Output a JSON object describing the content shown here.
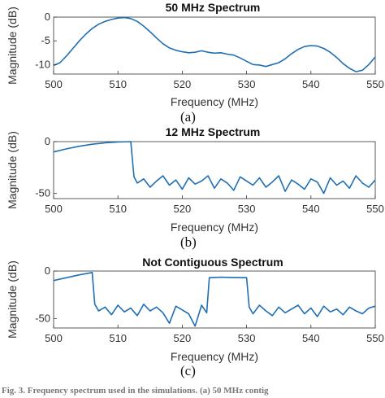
{
  "chart_data": [
    {
      "type": "line",
      "title": "50 MHz Spectrum",
      "xlabel": "Frequency (MHz)",
      "ylabel": "Magnitude (dB)",
      "caption": "(a)",
      "xlim": [
        500,
        550
      ],
      "ylim": [
        -12,
        0
      ],
      "xticks": [
        "500",
        "510",
        "520",
        "530",
        "540",
        "550"
      ],
      "yticks": [
        "0",
        "-5",
        "-10"
      ],
      "ytick_values": [
        0,
        -5,
        -10
      ],
      "series": [
        {
          "color": "#1f6fb5",
          "x": [
            500,
            501,
            502,
            503,
            504,
            505,
            506,
            507,
            508,
            509,
            510,
            511,
            512,
            513,
            514,
            515,
            516,
            517,
            518,
            519,
            520,
            521,
            522,
            523,
            524,
            525,
            526,
            527,
            528,
            529,
            530,
            531,
            532,
            533,
            534,
            535,
            536,
            537,
            538,
            539,
            540,
            541,
            542,
            543,
            544,
            545,
            546,
            547,
            548,
            549,
            550
          ],
          "y": [
            -10.2,
            -9.6,
            -8.2,
            -6.6,
            -5.0,
            -3.6,
            -2.4,
            -1.5,
            -0.9,
            -0.5,
            -0.2,
            -0.1,
            -0.3,
            -0.9,
            -1.9,
            -3.1,
            -4.4,
            -5.6,
            -6.5,
            -7.0,
            -7.3,
            -7.5,
            -7.4,
            -7.1,
            -7.4,
            -7.6,
            -7.5,
            -7.8,
            -8.0,
            -8.6,
            -9.3,
            -10.0,
            -10.1,
            -10.4,
            -10.0,
            -9.6,
            -8.8,
            -7.7,
            -6.8,
            -6.2,
            -6.0,
            -6.1,
            -6.6,
            -7.4,
            -8.5,
            -9.8,
            -10.8,
            -11.5,
            -11.2,
            -10.0,
            -8.4
          ]
        }
      ]
    },
    {
      "type": "line",
      "title": "12 MHz Spectrum",
      "xlabel": "Frequency (MHz)",
      "ylabel": "Magnitude (dB)",
      "caption": "(b)",
      "xlim": [
        500,
        550
      ],
      "ylim": [
        -55,
        0
      ],
      "xticks": [
        "500",
        "510",
        "520",
        "530",
        "540",
        "550"
      ],
      "yticks": [
        "0",
        "-50"
      ],
      "ytick_values": [
        0,
        -50
      ],
      "series": [
        {
          "color": "#1f6fb5",
          "x": [
            500,
            502,
            504,
            506,
            508,
            510,
            512,
            512.5,
            513,
            514,
            515,
            516,
            517,
            518,
            519,
            520,
            521,
            522,
            523,
            524,
            525,
            526,
            527,
            528,
            529,
            530,
            531,
            532,
            533,
            534,
            535,
            536,
            537,
            538,
            539,
            540,
            541,
            542,
            543,
            544,
            545,
            546,
            547,
            548,
            549,
            550
          ],
          "y": [
            -10,
            -7,
            -4.5,
            -2.5,
            -1.2,
            -0.4,
            0,
            -34,
            -40,
            -36,
            -44,
            -38,
            -33,
            -42,
            -37,
            -46,
            -35,
            -41,
            -38,
            -33,
            -45,
            -36,
            -40,
            -47,
            -34,
            -38,
            -42,
            -35,
            -44,
            -39,
            -33,
            -48,
            -37,
            -41,
            -46,
            -36,
            -39,
            -50,
            -35,
            -42,
            -38,
            -45,
            -33,
            -40,
            -44,
            -37
          ]
        }
      ]
    },
    {
      "type": "line",
      "title": "Not Contiguous Spectrum",
      "xlabel": "Frequency (MHz)",
      "ylabel": "Magnitude (dB)",
      "caption": "(c)",
      "xlim": [
        500,
        550
      ],
      "ylim": [
        -60,
        0
      ],
      "xticks": [
        "500",
        "510",
        "520",
        "530",
        "540",
        "550"
      ],
      "yticks": [
        "0",
        "-50"
      ],
      "ytick_values": [
        0,
        -50
      ],
      "series": [
        {
          "color": "#1f6fb5",
          "x": [
            500,
            502,
            504,
            506,
            506.4,
            507,
            508,
            509,
            510,
            511,
            512,
            513,
            514,
            515,
            516,
            517,
            518,
            519,
            520,
            521,
            522,
            523,
            523.8,
            524.2,
            526,
            528,
            530,
            530.4,
            531,
            532,
            533,
            534,
            535,
            536,
            537,
            538,
            539,
            540,
            541,
            542,
            543,
            544,
            545,
            546,
            547,
            548,
            549,
            550
          ],
          "y": [
            -10,
            -7,
            -4,
            -1.5,
            -35,
            -42,
            -38,
            -46,
            -36,
            -43,
            -39,
            -47,
            -35,
            -42,
            -38,
            -44,
            -55,
            -37,
            -41,
            -45,
            -58,
            -36,
            -44,
            -7,
            -6.5,
            -6.8,
            -7,
            -38,
            -45,
            -36,
            -42,
            -47,
            -38,
            -44,
            -40,
            -36,
            -45,
            -39,
            -48,
            -37,
            -43,
            -40,
            -46,
            -38,
            -42,
            -45,
            -39,
            -37
          ]
        }
      ]
    }
  ],
  "figure_caption_fragment": "Fig. 3.  Frequency spectrum used in the simulations. (a) 50 MHz contig"
}
